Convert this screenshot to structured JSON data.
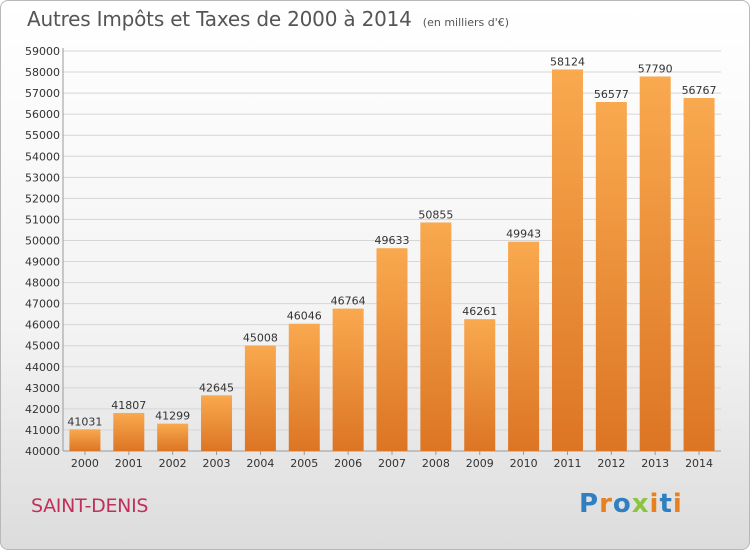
{
  "title": "Autres Impôts et Taxes de 2000 à 2014",
  "unit": "(en milliers d'€)",
  "city": "SAINT-DENIS",
  "logo": {
    "text": "Proxiti",
    "letters": [
      {
        "ch": "P",
        "color": "#2f7fc1"
      },
      {
        "ch": "r",
        "color": "#e8801e"
      },
      {
        "ch": "o",
        "color": "#2f7fc1"
      },
      {
        "ch": "x",
        "color": "#8bc53f"
      },
      {
        "ch": "i",
        "color": "#e8801e"
      },
      {
        "ch": "t",
        "color": "#2f7fc1"
      },
      {
        "ch": "i",
        "color": "#e8801e"
      }
    ]
  },
  "colors": {
    "bar_light": "#f9a94f",
    "bar_dark": "#dc7524",
    "grid": "#d6d6d6",
    "text": "#333333"
  },
  "chart_data": {
    "type": "bar",
    "categories": [
      "2000",
      "2001",
      "2002",
      "2003",
      "2004",
      "2005",
      "2006",
      "2007",
      "2008",
      "2009",
      "2010",
      "2011",
      "2012",
      "2013",
      "2014"
    ],
    "values": [
      41031,
      41807,
      41299,
      42645,
      45008,
      46046,
      46764,
      49633,
      50855,
      46261,
      49943,
      58124,
      56577,
      57790,
      56767
    ],
    "yticks": [
      40000,
      41000,
      42000,
      43000,
      44000,
      45000,
      46000,
      47000,
      48000,
      49000,
      50000,
      51000,
      52000,
      53000,
      54000,
      55000,
      56000,
      57000,
      58000,
      59000
    ],
    "ylim": [
      40000,
      59000
    ],
    "grid": true,
    "data_labels": true
  }
}
